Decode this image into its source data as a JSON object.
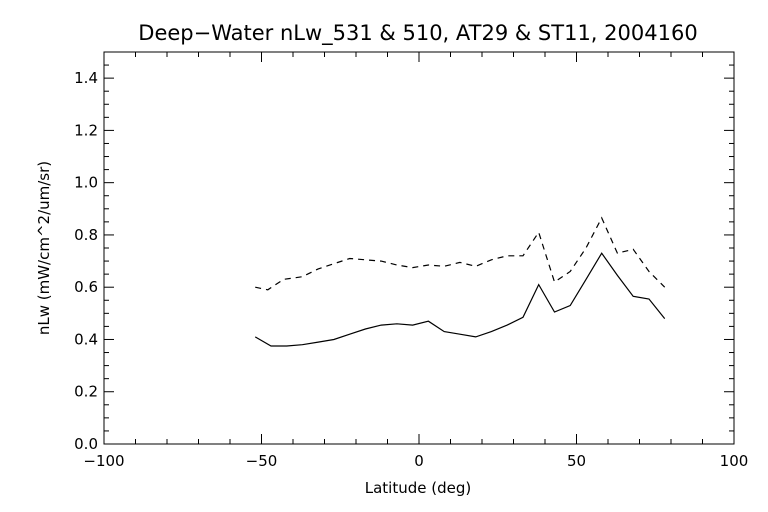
{
  "chart_data": {
    "type": "line",
    "title": "Deep−Water nLw_531 & 510, AT29 & ST11, 2004160",
    "xlabel": "Latitude (deg)",
    "ylabel": "nLw (mW/cm^2/um/sr)",
    "xlim": [
      -100,
      100
    ],
    "ylim": [
      0.0,
      1.5
    ],
    "x_major_ticks": [
      -100,
      -50,
      0,
      50,
      100
    ],
    "x_tick_labels": [
      "−100",
      "−50",
      "0",
      "50",
      "100"
    ],
    "x_minor_step": 10,
    "y_major_ticks": [
      0.0,
      0.2,
      0.4,
      0.6,
      0.8,
      1.0,
      1.2,
      1.4
    ],
    "y_tick_labels": [
      "0.0",
      "0.2",
      "0.4",
      "0.6",
      "0.8",
      "1.0",
      "1.2",
      "1.4"
    ],
    "y_minor_step": 0.05,
    "grid": false,
    "series": [
      {
        "line_style": "dashed",
        "color": "#000000",
        "x": [
          -52,
          -48,
          -43,
          -37,
          -32,
          -27,
          -22,
          -17,
          -12,
          -7,
          -2,
          3,
          8,
          13,
          18,
          23,
          28,
          33,
          38,
          43,
          48,
          53,
          58,
          63,
          68,
          73,
          78
        ],
        "y": [
          0.6,
          0.59,
          0.63,
          0.64,
          0.67,
          0.69,
          0.71,
          0.705,
          0.7,
          0.685,
          0.675,
          0.685,
          0.68,
          0.695,
          0.68,
          0.705,
          0.72,
          0.72,
          0.81,
          0.62,
          0.66,
          0.75,
          0.865,
          0.73,
          0.745,
          0.66,
          0.6
        ]
      },
      {
        "line_style": "solid",
        "color": "#000000",
        "x": [
          -52,
          -47,
          -42,
          -37,
          -32,
          -27,
          -22,
          -17,
          -12,
          -7,
          -2,
          3,
          8,
          13,
          18,
          23,
          28,
          33,
          38,
          43,
          48,
          53,
          58,
          63,
          68,
          73,
          78
        ],
        "y": [
          0.41,
          0.375,
          0.375,
          0.38,
          0.39,
          0.4,
          0.42,
          0.44,
          0.455,
          0.46,
          0.455,
          0.47,
          0.43,
          0.42,
          0.41,
          0.43,
          0.455,
          0.485,
          0.61,
          0.505,
          0.53,
          0.63,
          0.73,
          0.645,
          0.565,
          0.555,
          0.48
        ]
      }
    ]
  }
}
